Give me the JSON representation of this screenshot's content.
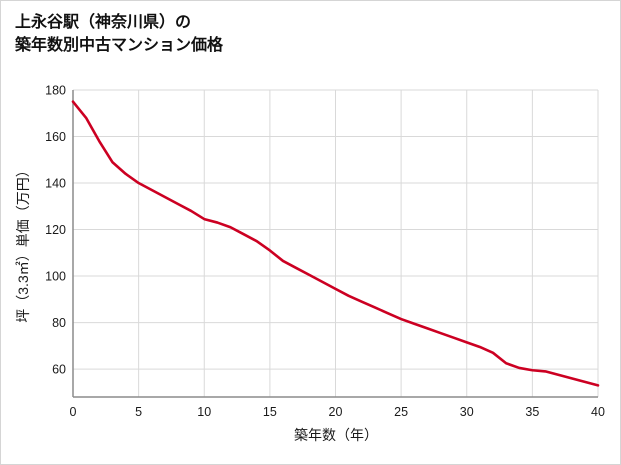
{
  "page": {
    "title_line1": "上永谷駅（神奈川県）の",
    "title_line2": "築年数別中古マンション価格"
  },
  "chart_data": {
    "type": "line",
    "title": "上永谷駅（神奈川県）の築年数別中古マンション価格",
    "xlabel": "築年数（年）",
    "ylabel": "坪（3.3㎡）単価（万円）",
    "x": [
      0,
      1,
      2,
      3,
      4,
      5,
      6,
      7,
      8,
      9,
      10,
      11,
      12,
      13,
      14,
      15,
      16,
      17,
      18,
      19,
      20,
      21,
      22,
      23,
      24,
      25,
      26,
      27,
      28,
      29,
      30,
      31,
      32,
      33,
      34,
      35,
      36,
      37,
      38,
      39,
      40
    ],
    "values": [
      175,
      168,
      158,
      149,
      144,
      140,
      137,
      134,
      131,
      128,
      124.5,
      123,
      121,
      118,
      115,
      111,
      106.5,
      103.5,
      100.5,
      97.5,
      94.5,
      91.5,
      89,
      86.5,
      84,
      81.5,
      79.5,
      77.5,
      75.5,
      73.5,
      71.5,
      69.5,
      67,
      62.5,
      60.5,
      59.5,
      59,
      57.5,
      56,
      54.5,
      53
    ],
    "xlim": [
      0,
      40
    ],
    "ylim": [
      48,
      180
    ],
    "x_ticks": [
      0,
      5,
      10,
      15,
      20,
      25,
      30,
      35,
      40
    ],
    "y_ticks": [
      60,
      80,
      100,
      120,
      140,
      160,
      180
    ],
    "grid": true,
    "legend": "none",
    "line_color": "#cc0022",
    "grid_color": "#d9d9d9",
    "axis_color": "#8c8c8c",
    "tick_color": "#1a1a1a"
  }
}
